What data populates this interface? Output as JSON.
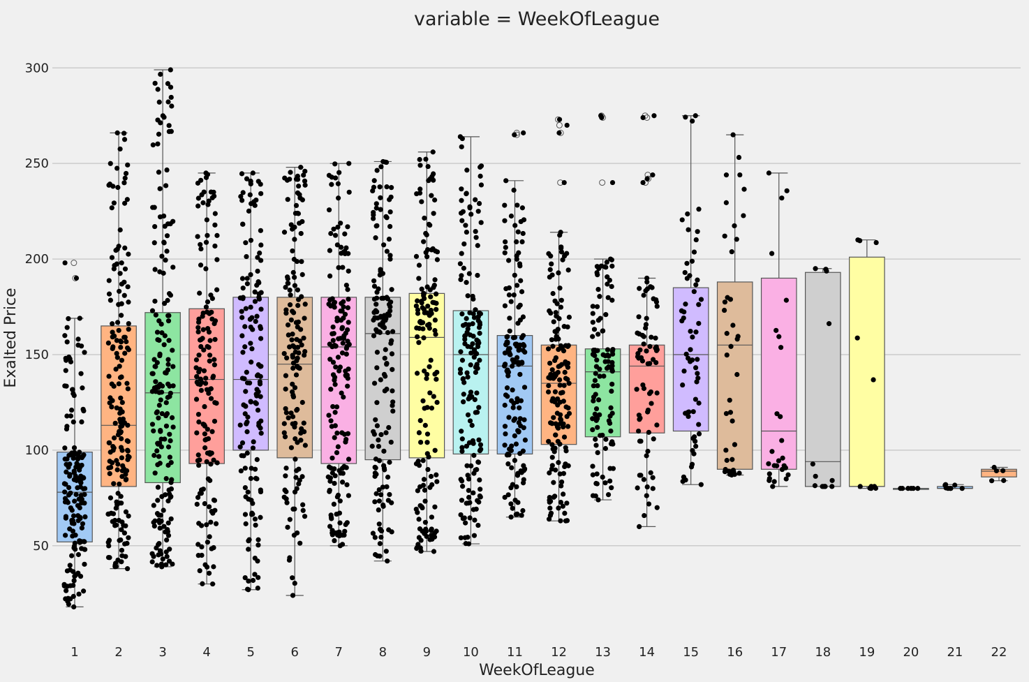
{
  "chart_data": {
    "type": "boxplot",
    "title": "variable = WeekOfLeague",
    "xlabel": "WeekOfLeague",
    "ylabel": "Exalted Price",
    "ylim": [
      5,
      318
    ],
    "yticks": [
      50,
      100,
      150,
      200,
      250,
      300
    ],
    "grid": "horizontal",
    "categories": [
      "1",
      "2",
      "3",
      "4",
      "5",
      "6",
      "7",
      "8",
      "9",
      "10",
      "11",
      "12",
      "13",
      "14",
      "15",
      "16",
      "17",
      "18",
      "19",
      "20",
      "21",
      "22"
    ],
    "colors": [
      "#a1c9f4",
      "#ffb482",
      "#8de5a1",
      "#ff9f9b",
      "#d0bbff",
      "#debb9b",
      "#fab0e4",
      "#cfcfcf",
      "#fffea3",
      "#b9f2f0",
      "#a1c9f4",
      "#ffb482",
      "#8de5a1",
      "#ff9f9b",
      "#d0bbff",
      "#debb9b",
      "#fab0e4",
      "#cfcfcf",
      "#fffea3",
      "#b9f2f0",
      "#a1c9f4",
      "#ffb482"
    ],
    "boxes": [
      {
        "week": "1",
        "whislo": 18,
        "q1": 52,
        "med": 78,
        "q3": 99,
        "whishi": 169,
        "fliers": [
          190,
          198
        ],
        "n": 160
      },
      {
        "week": "2",
        "whislo": 38,
        "q1": 81,
        "med": 113,
        "q3": 165,
        "whishi": 266,
        "fliers": [],
        "n": 180
      },
      {
        "week": "3",
        "whislo": 39,
        "q1": 83,
        "med": 130,
        "q3": 172,
        "whishi": 299,
        "fliers": [],
        "n": 180
      },
      {
        "week": "4",
        "whislo": 30,
        "q1": 93,
        "med": 137,
        "q3": 174,
        "whishi": 245,
        "fliers": [],
        "n": 150
      },
      {
        "week": "5",
        "whislo": 27,
        "q1": 100,
        "med": 137,
        "q3": 180,
        "whishi": 245,
        "fliers": [],
        "n": 150
      },
      {
        "week": "6",
        "whislo": 24,
        "q1": 96,
        "med": 145,
        "q3": 180,
        "whishi": 248,
        "fliers": [],
        "n": 150
      },
      {
        "week": "7",
        "whislo": 50,
        "q1": 93,
        "med": 154,
        "q3": 180,
        "whishi": 250,
        "fliers": [],
        "n": 160
      },
      {
        "week": "8",
        "whislo": 42,
        "q1": 95,
        "med": 161,
        "q3": 180,
        "whishi": 251,
        "fliers": [],
        "n": 150
      },
      {
        "week": "9",
        "whislo": 47,
        "q1": 96,
        "med": 159,
        "q3": 182,
        "whishi": 256,
        "fliers": [],
        "n": 150
      },
      {
        "week": "10",
        "whislo": 51,
        "q1": 98,
        "med": 150,
        "q3": 173,
        "whishi": 264,
        "fliers": [],
        "n": 160
      },
      {
        "week": "11",
        "whislo": 65,
        "q1": 98,
        "med": 144,
        "q3": 160,
        "whishi": 241,
        "fliers": [
          265,
          266
        ],
        "n": 150
      },
      {
        "week": "12",
        "whislo": 63,
        "q1": 103,
        "med": 135,
        "q3": 155,
        "whishi": 214,
        "fliers": [
          240,
          266,
          270,
          273
        ],
        "n": 150
      },
      {
        "week": "13",
        "whislo": 74,
        "q1": 107,
        "med": 141,
        "q3": 153,
        "whishi": 200,
        "fliers": [
          240,
          274,
          275
        ],
        "n": 110
      },
      {
        "week": "14",
        "whislo": 60,
        "q1": 109,
        "med": 144,
        "q3": 155,
        "whishi": 190,
        "fliers": [
          240,
          242,
          244,
          274,
          275
        ],
        "n": 70
      },
      {
        "week": "15",
        "whislo": 82,
        "q1": 110,
        "med": 150,
        "q3": 185,
        "whishi": 275,
        "fliers": [],
        "n": 60
      },
      {
        "week": "16",
        "whislo": 87,
        "q1": 90,
        "med": 155,
        "q3": 188,
        "whishi": 265,
        "fliers": [],
        "n": 40
      },
      {
        "week": "17",
        "whislo": 81,
        "q1": 90,
        "med": 110,
        "q3": 190,
        "whishi": 245,
        "fliers": [],
        "n": 25
      },
      {
        "week": "18",
        "whislo": 81,
        "q1": 81,
        "med": 94,
        "q3": 193,
        "whishi": 195,
        "fliers": [],
        "n": 12
      },
      {
        "week": "19",
        "whislo": 80,
        "q1": 81,
        "med": 81,
        "q3": 201,
        "whishi": 210,
        "fliers": [],
        "n": 10
      },
      {
        "week": "20",
        "whislo": 80,
        "q1": 80,
        "med": 80,
        "q3": 80,
        "whishi": 80,
        "fliers": [],
        "n": 4
      },
      {
        "week": "21",
        "whislo": 80,
        "q1": 80,
        "med": 80,
        "q3": 81,
        "whishi": 82,
        "fliers": [],
        "n": 6
      },
      {
        "week": "22",
        "whislo": 84,
        "q1": 86,
        "med": 89,
        "q3": 90,
        "whishi": 91,
        "fliers": [],
        "n": 3
      }
    ]
  }
}
